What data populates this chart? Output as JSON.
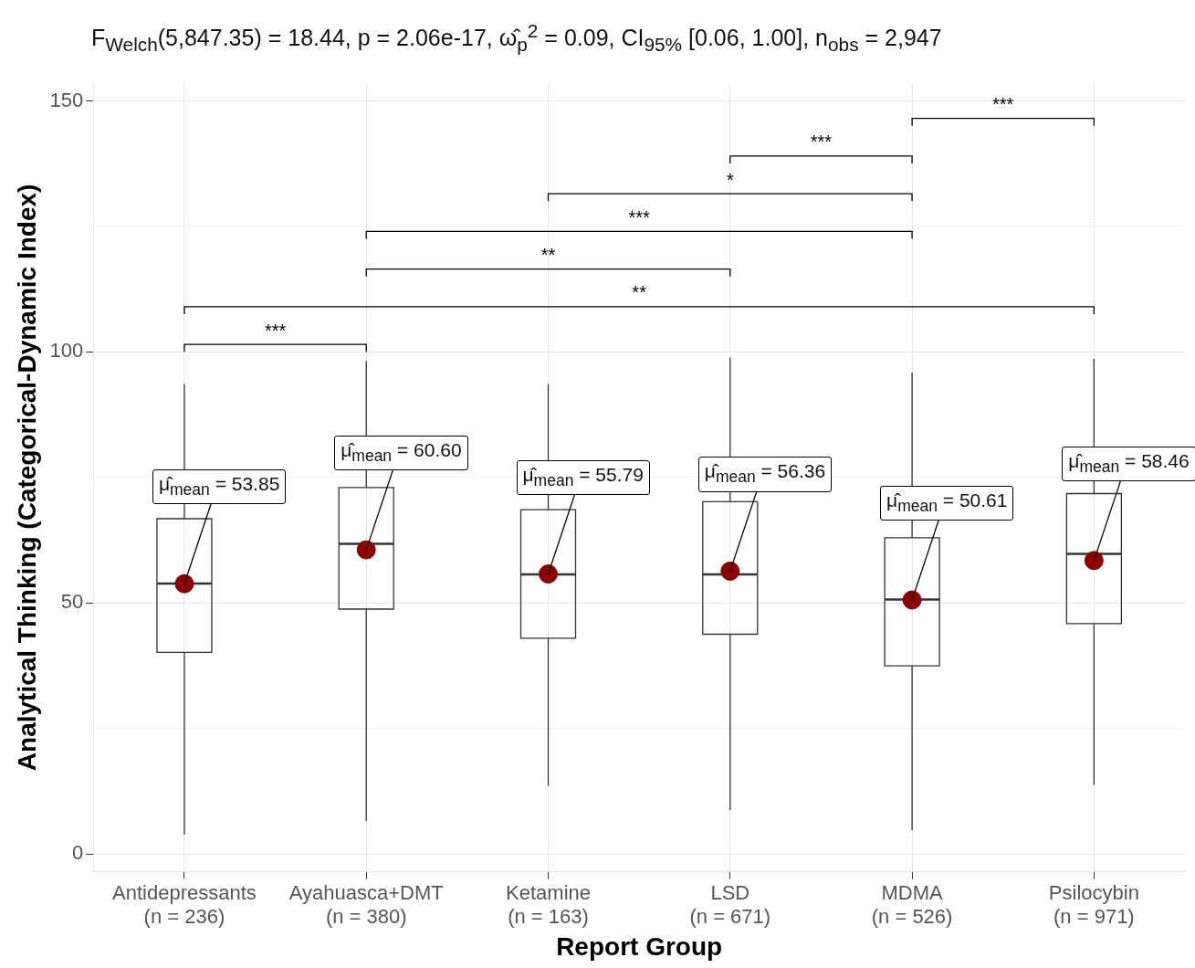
{
  "chart_data": {
    "type": "box",
    "title": "F$_{Welch}$(5,847.35) = 18.44, p = 2.06e-17, ω̂$_{p}$$^{2}$ = 0.09, CI$_{95%}$ [0.06, 1.00], n$_{obs}$ = 2,947",
    "xlabel": "Report Group",
    "ylabel": "Analytical Thinking (Categorical-Dynamic Index)",
    "categories": [
      "Antidepressants\n(n = 236)",
      "Ayahuasca+DMT\n(n = 380)",
      "Ketamine\n(n = 163)",
      "LSD\n(n = 671)",
      "MDMA\n(n = 526)",
      "Psilocybin\n(n = 971)"
    ],
    "boxes": [
      {
        "low": 3.9,
        "q1": 40.2,
        "median": 53.9,
        "q3": 66.8,
        "high": 93.6,
        "mean": 53.85
      },
      {
        "low": 6.6,
        "q1": 48.8,
        "median": 61.8,
        "q3": 73.0,
        "high": 98.2,
        "mean": 60.6
      },
      {
        "low": 13.6,
        "q1": 43.0,
        "median": 55.7,
        "q3": 68.6,
        "high": 93.6,
        "mean": 55.79
      },
      {
        "low": 8.8,
        "q1": 43.8,
        "median": 55.7,
        "q3": 70.2,
        "high": 98.9,
        "mean": 56.36
      },
      {
        "low": 4.8,
        "q1": 37.5,
        "median": 50.7,
        "q3": 63.0,
        "high": 95.9,
        "mean": 50.61
      },
      {
        "low": 13.8,
        "q1": 45.9,
        "median": 59.8,
        "q3": 71.8,
        "high": 98.6,
        "mean": 58.46
      }
    ],
    "color": "#333333",
    "value_labels": [
      "μ̂$_{mean}$ = 53.85",
      "μ̂$_{mean}$ = 60.60",
      "μ̂$_{mean}$ = 55.79",
      "μ̂$_{mean}$ = 56.36",
      "μ̂$_{mean}$ = 50.61",
      "μ̂$_{mean}$ = 58.46"
    ],
    "annotations": [
      "***",
      "**",
      "**",
      "***",
      "*",
      "***",
      "***"
    ],
    "ylim": [
      -3.5,
      153.5
    ],
    "yticks": [
      0,
      {
        "value": 25,
        "label": null
      },
      50,
      {
        "value": 75,
        "label": null
      },
      100,
      {
        "value": 125,
        "label": null
      },
      150
    ],
    "grid": true,
    "legend": false
  }
}
